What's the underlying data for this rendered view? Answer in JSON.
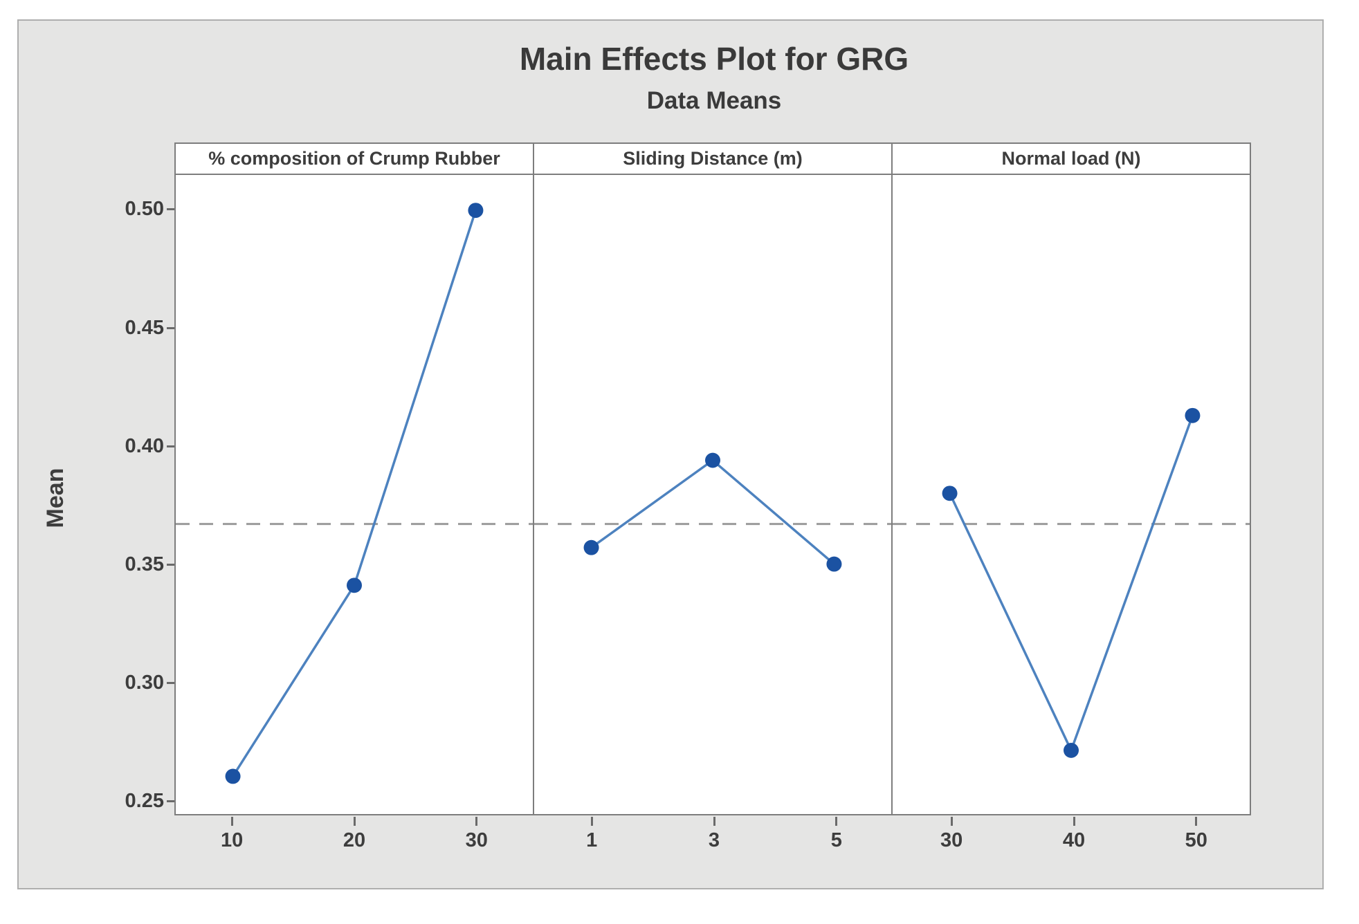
{
  "chart_data": {
    "type": "line",
    "title": "Main Effects Plot for GRG",
    "subtitle": "Data Means",
    "ylabel": "Mean",
    "ylim": [
      0.244,
      0.515
    ],
    "yticks": [
      {
        "label": "0.50",
        "value": 0.5
      },
      {
        "label": "0.45",
        "value": 0.45
      },
      {
        "label": "0.40",
        "value": 0.4
      },
      {
        "label": "0.35",
        "value": 0.35
      },
      {
        "label": "0.30",
        "value": 0.3
      },
      {
        "label": "0.25",
        "value": 0.25
      }
    ],
    "grand_mean": 0.367,
    "grid": false,
    "legend": "none",
    "panels": [
      {
        "header": "% composition of Crump Rubber",
        "categories": [
          "10",
          "20",
          "30"
        ],
        "values": [
          0.26,
          0.341,
          0.5
        ]
      },
      {
        "header": "Sliding Distance (m)",
        "categories": [
          "1",
          "3",
          "5"
        ],
        "values": [
          0.357,
          0.394,
          0.35
        ]
      },
      {
        "header": "Normal load (N)",
        "categories": [
          "30",
          "40",
          "50"
        ],
        "values": [
          0.38,
          0.271,
          0.413
        ]
      }
    ],
    "colors": {
      "marker": "#1b52a2",
      "line": "#4d82bf",
      "mean_line": "#9b9b9b",
      "panel_border": "#7d7d7d",
      "figure_bg": "#e5e5e4",
      "text": "#3d3d3d"
    }
  }
}
